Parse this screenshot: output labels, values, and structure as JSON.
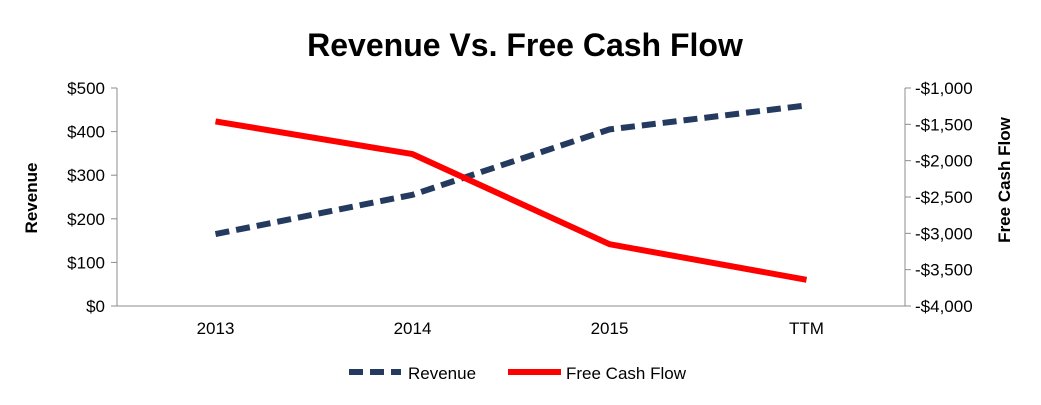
{
  "chart_data": {
    "type": "line",
    "title": "Revenue Vs. Free Cash Flow",
    "categories": [
      "2013",
      "2014",
      "2015",
      "TTM"
    ],
    "y_left": {
      "label": "Revenue",
      "range": [
        0,
        500
      ],
      "ticks": [
        0,
        100,
        200,
        300,
        400,
        500
      ],
      "tick_labels": [
        "$0",
        "$100",
        "$200",
        "$300",
        "$400",
        "$500"
      ]
    },
    "y_right": {
      "label": "Free Cash Flow",
      "range": [
        -4000,
        -1000
      ],
      "ticks": [
        -4000,
        -3500,
        -3000,
        -2500,
        -2000,
        -1500,
        -1000
      ],
      "tick_labels": [
        "-$4,000",
        "-$3,500",
        "-$3,000",
        "-$2,500",
        "-$2,000",
        "-$1,500",
        "-$1,000"
      ]
    },
    "series": [
      {
        "name": "Revenue",
        "axis": "left",
        "style": "dashed",
        "color": "#243a5e",
        "values": [
          165,
          255,
          405,
          460
        ]
      },
      {
        "name": "Free Cash Flow",
        "axis": "right",
        "style": "solid",
        "color": "#ff0000",
        "values": [
          -1460,
          -1910,
          -3150,
          -3640
        ]
      }
    ],
    "grid": false,
    "legend": "bottom"
  }
}
